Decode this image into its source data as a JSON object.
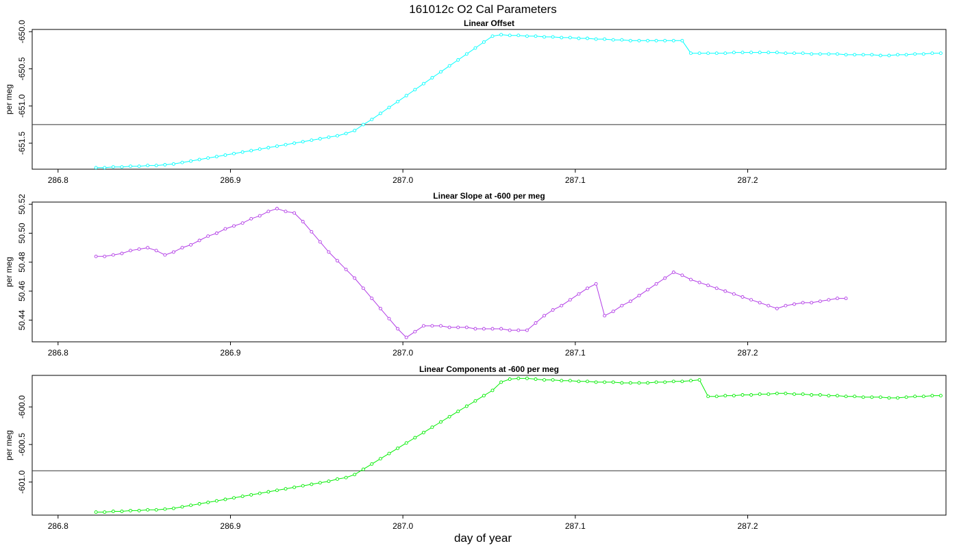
{
  "title": "161012c   O2 Cal Parameters",
  "xlabel": "day of year",
  "chart_data": [
    {
      "type": "line",
      "title": "Linear Offset",
      "ylabel": "per meg",
      "color": "#00ffff",
      "xlim": [
        286.785,
        287.315
      ],
      "ylim": [
        -651.85,
        -649.97
      ],
      "xticks": [
        286.8,
        286.9,
        287.0,
        287.1,
        287.2
      ],
      "xtick_labels": [
        "286.8",
        "286.9",
        "287.0",
        "287.1",
        "287.2"
      ],
      "yticks": [
        -651.5,
        -651.0,
        -650.5,
        -650.0
      ],
      "ytick_labels": [
        "-651.5",
        "-651.0",
        "-650.5",
        "-650.0"
      ],
      "hline": -651.25,
      "x0": 286.822,
      "dx": 0.005,
      "values": [
        -651.83,
        -651.83,
        -651.82,
        -651.82,
        -651.81,
        -651.81,
        -651.8,
        -651.8,
        -651.79,
        -651.78,
        -651.76,
        -651.74,
        -651.72,
        -651.7,
        -651.68,
        -651.66,
        -651.64,
        -651.62,
        -651.6,
        -651.58,
        -651.56,
        -651.54,
        -651.52,
        -651.5,
        -651.48,
        -651.46,
        -651.44,
        -651.42,
        -651.4,
        -651.37,
        -651.33,
        -651.25,
        -651.18,
        -651.1,
        -651.02,
        -650.94,
        -650.86,
        -650.78,
        -650.7,
        -650.62,
        -650.54,
        -650.46,
        -650.38,
        -650.3,
        -650.22,
        -650.14,
        -650.06,
        -650.04,
        -650.05,
        -650.05,
        -650.06,
        -650.06,
        -650.07,
        -650.07,
        -650.08,
        -650.08,
        -650.09,
        -650.09,
        -650.1,
        -650.1,
        -650.11,
        -650.11,
        -650.12,
        -650.12,
        -650.12,
        -650.12,
        -650.12,
        -650.12,
        -650.12,
        -650.29,
        -650.29,
        -650.29,
        -650.29,
        -650.29,
        -650.28,
        -650.28,
        -650.28,
        -650.28,
        -650.28,
        -650.28,
        -650.29,
        -650.29,
        -650.29,
        -650.3,
        -650.3,
        -650.3,
        -650.3,
        -650.31,
        -650.31,
        -650.31,
        -650.31,
        -650.32,
        -650.32,
        -650.31,
        -650.31,
        -650.3,
        -650.3,
        -650.29,
        -650.29
      ]
    },
    {
      "type": "line",
      "title": "Linear Slope at -600 per meg",
      "ylabel": "per meg",
      "color": "#b23be6",
      "xlim": [
        286.785,
        287.315
      ],
      "ylim": [
        50.425,
        50.5215
      ],
      "xticks": [
        286.8,
        286.9,
        287.0,
        287.1,
        287.2
      ],
      "xtick_labels": [
        "286.8",
        "286.9",
        "287.0",
        "287.1",
        "287.2"
      ],
      "yticks": [
        50.44,
        50.46,
        50.48,
        50.5,
        50.52
      ],
      "ytick_labels": [
        "50.44",
        "50.46",
        "50.48",
        "50.50",
        "50.52"
      ],
      "x0": 286.822,
      "dx": 0.005,
      "values": [
        50.484,
        50.484,
        50.485,
        50.486,
        50.488,
        50.489,
        50.49,
        50.488,
        50.485,
        50.487,
        50.49,
        50.492,
        50.495,
        50.498,
        50.5,
        50.503,
        50.505,
        50.507,
        50.51,
        50.512,
        50.515,
        50.517,
        50.515,
        50.514,
        50.508,
        50.501,
        50.494,
        50.487,
        50.481,
        50.475,
        50.469,
        50.462,
        50.455,
        50.448,
        50.441,
        50.434,
        50.428,
        50.432,
        50.436,
        50.436,
        50.436,
        50.435,
        50.435,
        50.435,
        50.434,
        50.434,
        50.434,
        50.434,
        50.433,
        50.433,
        50.433,
        50.438,
        50.443,
        50.447,
        50.45,
        50.454,
        50.458,
        50.462,
        50.465,
        50.443,
        50.446,
        50.45,
        50.453,
        50.457,
        50.461,
        50.465,
        50.469,
        50.473,
        50.471,
        50.468,
        50.466,
        50.464,
        50.462,
        50.46,
        50.458,
        50.456,
        50.454,
        50.452,
        50.45,
        50.448,
        50.45,
        50.451,
        50.452,
        50.452,
        50.453,
        50.454,
        50.455,
        50.455
      ]
    },
    {
      "type": "line",
      "title": "Linear Components at -600 per meg",
      "ylabel": "per meg",
      "color": "#00ee00",
      "xlim": [
        286.785,
        287.315
      ],
      "ylim": [
        -601.44,
        -599.58
      ],
      "xticks": [
        286.8,
        286.9,
        287.0,
        287.1,
        287.2
      ],
      "xtick_labels": [
        "286.8",
        "286.9",
        "287.0",
        "287.1",
        "287.2"
      ],
      "yticks": [
        -601.0,
        -600.5,
        -600.0
      ],
      "ytick_labels": [
        "-601.0",
        "-600.5",
        "-600.0"
      ],
      "hline": -600.85,
      "x0": 286.822,
      "dx": 0.005,
      "values": [
        -601.4,
        -601.4,
        -601.39,
        -601.39,
        -601.38,
        -601.38,
        -601.37,
        -601.37,
        -601.36,
        -601.35,
        -601.33,
        -601.31,
        -601.29,
        -601.27,
        -601.25,
        -601.23,
        -601.21,
        -601.19,
        -601.17,
        -601.15,
        -601.13,
        -601.11,
        -601.09,
        -601.07,
        -601.05,
        -601.03,
        -601.01,
        -600.99,
        -600.96,
        -600.94,
        -600.9,
        -600.83,
        -600.76,
        -600.69,
        -600.62,
        -600.55,
        -600.48,
        -600.41,
        -600.34,
        -600.27,
        -600.2,
        -600.13,
        -600.06,
        -599.99,
        -599.92,
        -599.85,
        -599.78,
        -599.67,
        -599.63,
        -599.62,
        -599.62,
        -599.63,
        -599.64,
        -599.64,
        -599.65,
        -599.65,
        -599.66,
        -599.66,
        -599.67,
        -599.67,
        -599.67,
        -599.68,
        -599.68,
        -599.68,
        -599.68,
        -599.67,
        -599.67,
        -599.66,
        -599.66,
        -599.65,
        -599.64,
        -599.86,
        -599.86,
        -599.85,
        -599.85,
        -599.84,
        -599.84,
        -599.83,
        -599.83,
        -599.82,
        -599.82,
        -599.83,
        -599.83,
        -599.84,
        -599.84,
        -599.85,
        -599.85,
        -599.86,
        -599.86,
        -599.87,
        -599.87,
        -599.87,
        -599.88,
        -599.88,
        -599.87,
        -599.86,
        -599.86,
        -599.85,
        -599.85
      ]
    }
  ]
}
